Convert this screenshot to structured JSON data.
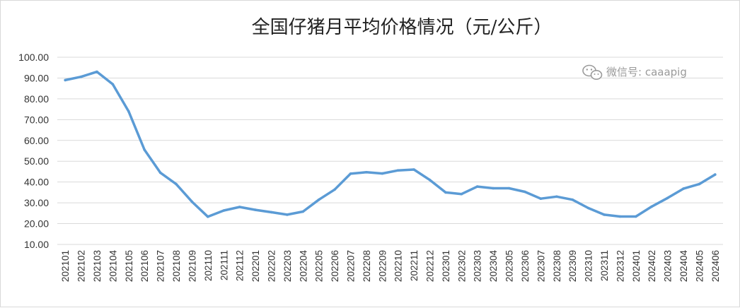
{
  "chart_data": {
    "type": "line",
    "title": "全国仔猪月平均价格情况（元/公斤）",
    "xlabel": "",
    "ylabel": "",
    "ylim": [
      10,
      100
    ],
    "yticks": [
      "10.00",
      "20.00",
      "30.00",
      "40.00",
      "50.00",
      "60.00",
      "70.00",
      "80.00",
      "90.00",
      "100.00"
    ],
    "grid": true,
    "legend": "none",
    "categories": [
      "202101",
      "202102",
      "202103",
      "202104",
      "202105",
      "202106",
      "202107",
      "202108",
      "202109",
      "202110",
      "202111",
      "202112",
      "202201",
      "202202",
      "202203",
      "202204",
      "202205",
      "202206",
      "202207",
      "202208",
      "202209",
      "202210",
      "202211",
      "202212",
      "202301",
      "202302",
      "202303",
      "202304",
      "202305",
      "202306",
      "202307",
      "202308",
      "202309",
      "202310",
      "202311",
      "202312",
      "202401",
      "202402",
      "202403",
      "202404",
      "202405",
      "202406"
    ],
    "series": [
      {
        "color": "#5b9bd5",
        "values": [
          89.0,
          90.6,
          93.0,
          87.0,
          74.0,
          55.5,
          44.5,
          39.0,
          30.5,
          23.3,
          26.3,
          28.0,
          26.6,
          25.5,
          24.3,
          25.8,
          31.5,
          36.4,
          44.0,
          44.7,
          44.1,
          45.6,
          46.0,
          41.0,
          35.0,
          34.2,
          37.8,
          37.0,
          37.0,
          35.3,
          32.0,
          33.0,
          31.5,
          27.5,
          24.3,
          23.4,
          23.4,
          28.2,
          32.3,
          36.8,
          39.0,
          43.6
        ]
      }
    ]
  },
  "watermark": {
    "text": "微信号: caaapig",
    "icon": "wechat-icon"
  }
}
